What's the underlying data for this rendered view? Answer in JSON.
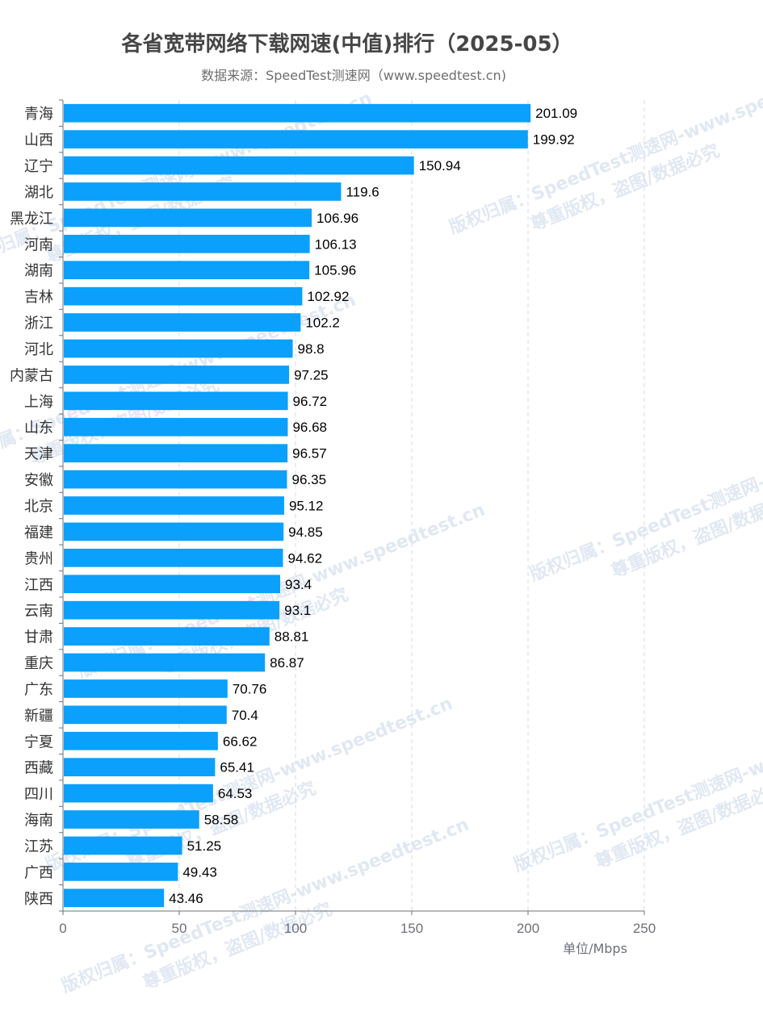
{
  "title": "各省宽带网络下载网速(中值)排行（2025-05）",
  "subtitle": "数据来源：SpeedTest测速网（www.speedtest.cn)",
  "watermark": {
    "line1": "版权归属：SpeedTest测速网-www.speedtest.cn",
    "line2": "尊重版权，盗图/数据必究"
  },
  "colors": {
    "bar": "#0aa0fc",
    "grid": "#d6d9ec",
    "axis": "#6e7079",
    "text": "#000000"
  },
  "chart_data": {
    "type": "bar",
    "orientation": "horizontal",
    "title": "各省宽带网络下载网速(中值)排行（2025-05）",
    "xlabel": "单位/Mbps",
    "xlim": [
      0,
      250
    ],
    "xticks": [
      0,
      50,
      100,
      150,
      200,
      250
    ],
    "categories": [
      "青海",
      "山西",
      "辽宁",
      "湖北",
      "黑龙江",
      "河南",
      "湖南",
      "吉林",
      "浙江",
      "河北",
      "内蒙古",
      "上海",
      "山东",
      "天津",
      "安徽",
      "北京",
      "福建",
      "贵州",
      "江西",
      "云南",
      "甘肃",
      "重庆",
      "广东",
      "新疆",
      "宁夏",
      "西藏",
      "四川",
      "海南",
      "江苏",
      "广西",
      "陕西"
    ],
    "values": [
      201.09,
      199.92,
      150.94,
      119.6,
      106.96,
      106.13,
      105.96,
      102.92,
      102.2,
      98.8,
      97.25,
      96.72,
      96.68,
      96.57,
      96.35,
      95.12,
      94.85,
      94.62,
      93.4,
      93.1,
      88.81,
      86.87,
      70.76,
      70.4,
      66.62,
      65.41,
      64.53,
      58.58,
      51.25,
      49.43,
      43.46
    ],
    "value_labels": [
      "201.09",
      "199.92",
      "150.94",
      "119.6",
      "106.96",
      "106.13",
      "105.96",
      "102.92",
      "102.2",
      "98.8",
      "97.25",
      "96.72",
      "96.68",
      "96.57",
      "96.35",
      "95.12",
      "94.85",
      "94.62",
      "93.4",
      "93.1",
      "88.81",
      "86.87",
      "70.76",
      "70.4",
      "66.62",
      "65.41",
      "64.53",
      "58.58",
      "51.25",
      "49.43",
      "43.46"
    ]
  }
}
